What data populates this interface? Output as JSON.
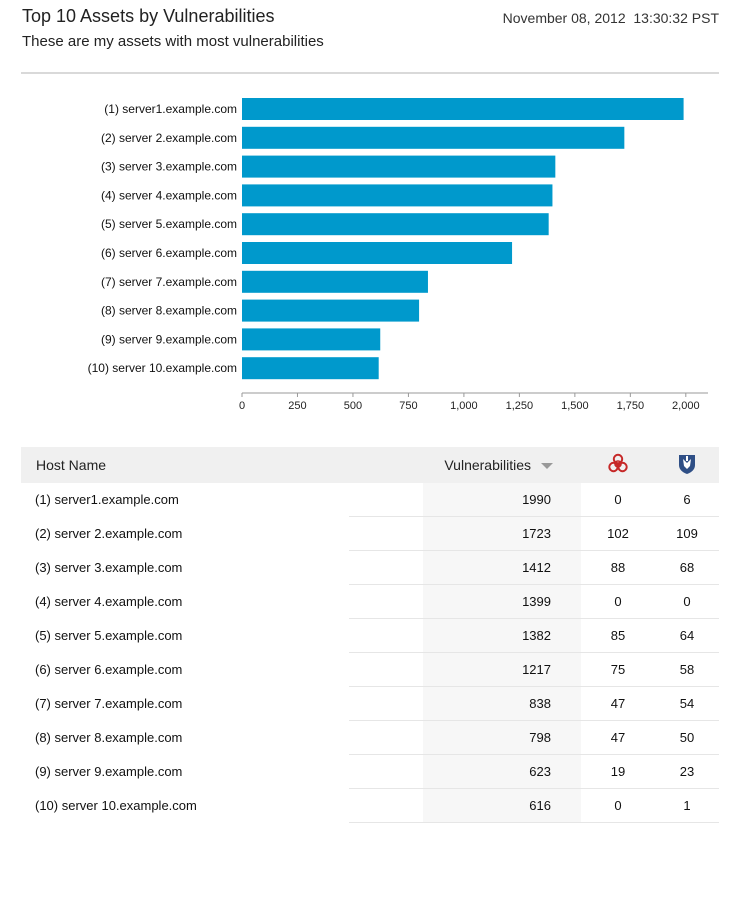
{
  "header": {
    "title": "Top 10 Assets by Vulnerabilities",
    "subtitle": "These are my assets with most vulnerabilities",
    "timestamp": "November 08, 2012  13:30:32 PST"
  },
  "colors": {
    "bar": "#0099cc",
    "axis": "#999999",
    "header_bg": "#f0f0f0"
  },
  "chart_data": {
    "type": "bar",
    "orientation": "horizontal",
    "categories": [
      "(1) server1.example.com",
      "(2) server 2.example.com",
      "(3) server 3.example.com",
      "(4) server 4.example.com",
      "(5) server 5.example.com",
      "(6) server 6.example.com",
      "(7) server 7.example.com",
      "(8) server 8.example.com",
      "(9) server 9.example.com",
      "(10) server 10.example.com"
    ],
    "values": [
      1990,
      1723,
      1412,
      1399,
      1382,
      1217,
      838,
      798,
      623,
      616
    ],
    "xlim": [
      0,
      2100
    ],
    "xticks": [
      0,
      250,
      500,
      750,
      1000,
      1250,
      1500,
      1750,
      2000
    ],
    "xtick_labels": [
      "0",
      "250",
      "500",
      "750",
      "1,000",
      "1,250",
      "1,500",
      "1,750",
      "2,000"
    ],
    "grid": false
  },
  "table": {
    "columns": {
      "host": "Host Name",
      "vulnerabilities": "Vulnerabilities",
      "malware_icon": "biohazard-icon",
      "exploit_icon": "exploit-shield-icon"
    },
    "rows": [
      {
        "host": "(1) server1.example.com",
        "vulnerabilities": "1990",
        "malware": "0",
        "exploits": "6"
      },
      {
        "host": "(2) server 2.example.com",
        "vulnerabilities": "1723",
        "malware": "102",
        "exploits": "109"
      },
      {
        "host": "(3) server 3.example.com",
        "vulnerabilities": "1412",
        "malware": "88",
        "exploits": "68"
      },
      {
        "host": "(4) server 4.example.com",
        "vulnerabilities": "1399",
        "malware": "0",
        "exploits": "0"
      },
      {
        "host": "(5) server 5.example.com",
        "vulnerabilities": "1382",
        "malware": "85",
        "exploits": "64"
      },
      {
        "host": "(6) server 6.example.com",
        "vulnerabilities": "1217",
        "malware": "75",
        "exploits": "58"
      },
      {
        "host": "(7) server 7.example.com",
        "vulnerabilities": "838",
        "malware": "47",
        "exploits": "54"
      },
      {
        "host": "(8) server 8.example.com",
        "vulnerabilities": "798",
        "malware": "47",
        "exploits": "50"
      },
      {
        "host": "(9) server 9.example.com",
        "vulnerabilities": "623",
        "malware": "19",
        "exploits": "23"
      },
      {
        "host": "(10) server 10.example.com",
        "vulnerabilities": "616",
        "malware": "0",
        "exploits": "1"
      }
    ]
  }
}
